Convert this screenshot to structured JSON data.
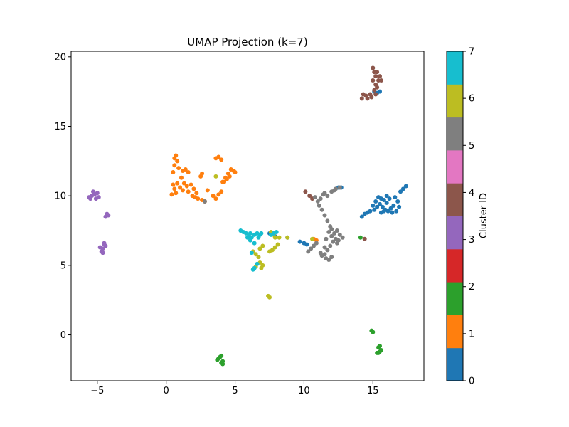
{
  "chart_data": {
    "type": "scatter",
    "title": "UMAP Projection (k=7)",
    "xlabel": "",
    "ylabel": "",
    "xlim": [
      -6.9,
      18.7
    ],
    "ylim": [
      -3.3,
      20.4
    ],
    "xticks": [
      -5,
      0,
      5,
      10,
      15
    ],
    "yticks": [
      0,
      5,
      10,
      15,
      20
    ],
    "colorbar": {
      "label": "Cluster ID",
      "min": 0,
      "max": 7,
      "ticks": [
        0,
        1,
        2,
        3,
        4,
        5,
        6,
        7
      ],
      "colors": [
        "#1f77b4",
        "#ff7f0e",
        "#2ca02c",
        "#d62728",
        "#9467bd",
        "#8c564b",
        "#e377c2",
        "#7f7f7f",
        "#bcbd22",
        "#17becf"
      ]
    },
    "series": [
      {
        "cluster": 0,
        "color": "#1f77b4",
        "points": [
          [
            15.3,
            17.4
          ],
          [
            15.5,
            17.5
          ],
          [
            15.1,
            17.5
          ],
          [
            14.2,
            8.5
          ],
          [
            14.4,
            8.7
          ],
          [
            14.6,
            8.8
          ],
          [
            14.8,
            8.9
          ],
          [
            15.0,
            9.3
          ],
          [
            15.2,
            9.6
          ],
          [
            15.4,
            9.9
          ],
          [
            15.6,
            9.8
          ],
          [
            15.8,
            9.7
          ],
          [
            15.5,
            9.4
          ],
          [
            15.7,
            9.2
          ],
          [
            15.9,
            9.0
          ],
          [
            16.1,
            8.9
          ],
          [
            16.3,
            9.1
          ],
          [
            16.5,
            9.3
          ],
          [
            16.0,
            9.5
          ],
          [
            16.2,
            9.8
          ],
          [
            15.6,
            8.8
          ],
          [
            15.8,
            8.9
          ],
          [
            16.4,
            8.8
          ],
          [
            16.7,
            8.9
          ],
          [
            16.9,
            9.2
          ],
          [
            16.8,
            9.6
          ],
          [
            16.6,
            9.9
          ],
          [
            17.0,
            10.3
          ],
          [
            17.2,
            10.5
          ],
          [
            17.4,
            10.7
          ],
          [
            16.0,
            10.0
          ],
          [
            15.3,
            9.2
          ],
          [
            15.1,
            9.0
          ],
          [
            12.5,
            10.6
          ],
          [
            12.7,
            10.6
          ],
          [
            10.0,
            6.6
          ],
          [
            10.2,
            6.5
          ],
          [
            9.7,
            6.7
          ],
          [
            8.8,
            7.0
          ],
          [
            7.5,
            7.3
          ],
          [
            7.9,
            7.1
          ]
        ]
      },
      {
        "cluster": 1,
        "color": "#ff7f0e",
        "points": [
          [
            0.5,
            10.8
          ],
          [
            0.6,
            10.5
          ],
          [
            0.8,
            10.9
          ],
          [
            1.0,
            10.6
          ],
          [
            0.7,
            10.2
          ],
          [
            0.6,
            12.7
          ],
          [
            0.7,
            12.9
          ],
          [
            0.8,
            12.5
          ],
          [
            0.6,
            12.2
          ],
          [
            0.9,
            12.0
          ],
          [
            0.5,
            11.7
          ],
          [
            1.2,
            11.8
          ],
          [
            1.4,
            11.9
          ],
          [
            1.6,
            11.7
          ],
          [
            1.1,
            11.3
          ],
          [
            1.3,
            10.9
          ],
          [
            1.5,
            10.7
          ],
          [
            1.8,
            10.8
          ],
          [
            2.0,
            10.5
          ],
          [
            2.2,
            10.2
          ],
          [
            1.6,
            10.3
          ],
          [
            1.9,
            10.0
          ],
          [
            2.1,
            9.9
          ],
          [
            2.3,
            9.8
          ],
          [
            2.6,
            9.7
          ],
          [
            2.8,
            9.6
          ],
          [
            2.5,
            11.4
          ],
          [
            2.6,
            11.6
          ],
          [
            3.0,
            10.4
          ],
          [
            3.4,
            10.0
          ],
          [
            3.6,
            9.8
          ],
          [
            3.8,
            10.1
          ],
          [
            4.0,
            10.3
          ],
          [
            4.2,
            11.0
          ],
          [
            4.3,
            11.3
          ],
          [
            4.5,
            11.6
          ],
          [
            4.7,
            11.9
          ],
          [
            4.9,
            11.8
          ],
          [
            4.6,
            11.4
          ],
          [
            4.4,
            11.2
          ],
          [
            4.1,
            11.0
          ],
          [
            3.6,
            12.7
          ],
          [
            3.8,
            12.8
          ],
          [
            4.0,
            12.6
          ],
          [
            5.0,
            11.7
          ],
          [
            1.2,
            10.4
          ],
          [
            0.4,
            10.1
          ],
          [
            10.7,
            6.9
          ],
          [
            10.9,
            6.8
          ]
        ]
      },
      {
        "cluster": 2,
        "color": "#2ca02c",
        "points": [
          [
            3.7,
            -1.8
          ],
          [
            3.9,
            -1.6
          ],
          [
            4.0,
            -1.5
          ],
          [
            4.1,
            -1.9
          ],
          [
            3.8,
            -1.7
          ],
          [
            4.0,
            -2.0
          ],
          [
            4.1,
            -2.1
          ],
          [
            15.3,
            -1.3
          ],
          [
            15.5,
            -1.2
          ],
          [
            15.4,
            -0.9
          ],
          [
            15.6,
            -1.1
          ],
          [
            15.5,
            -0.8
          ],
          [
            15.4,
            -1.3
          ],
          [
            15.0,
            0.2
          ],
          [
            14.9,
            0.3
          ],
          [
            14.1,
            7.0
          ]
        ]
      },
      {
        "cluster": 3,
        "color": "#9467bd",
        "points": [
          [
            -5.6,
            9.9
          ],
          [
            -5.4,
            10.0
          ],
          [
            -5.2,
            10.1
          ],
          [
            -5.0,
            10.2
          ],
          [
            -5.3,
            10.3
          ],
          [
            -5.1,
            9.8
          ],
          [
            -4.9,
            9.9
          ],
          [
            -5.5,
            9.8
          ],
          [
            -4.4,
            8.5
          ],
          [
            -4.2,
            8.6
          ],
          [
            -4.3,
            8.7
          ],
          [
            -4.8,
            6.3
          ],
          [
            -4.6,
            6.2
          ],
          [
            -4.5,
            6.5
          ],
          [
            -4.4,
            6.4
          ],
          [
            -4.7,
            6.0
          ],
          [
            -4.6,
            5.9
          ],
          [
            -4.5,
            6.6
          ]
        ]
      },
      {
        "cluster": 4,
        "color": "#8c564b",
        "points": [
          [
            15.0,
            19.2
          ],
          [
            15.1,
            18.9
          ],
          [
            15.2,
            18.6
          ],
          [
            15.0,
            18.3
          ],
          [
            15.2,
            18.0
          ],
          [
            15.4,
            18.3
          ],
          [
            15.6,
            18.3
          ],
          [
            15.5,
            18.6
          ],
          [
            15.3,
            17.8
          ],
          [
            15.1,
            17.6
          ],
          [
            14.8,
            17.3
          ],
          [
            14.5,
            17.2
          ],
          [
            14.3,
            17.3
          ],
          [
            14.2,
            17.0
          ],
          [
            14.6,
            17.0
          ],
          [
            14.9,
            17.1
          ],
          [
            15.2,
            17.3
          ],
          [
            15.3,
            18.9
          ],
          [
            10.1,
            10.3
          ],
          [
            10.4,
            10.0
          ],
          [
            10.6,
            9.8
          ],
          [
            14.4,
            6.9
          ]
        ]
      },
      {
        "cluster": 5,
        "color": "#7f7f7f",
        "points": [
          [
            10.8,
            9.9
          ],
          [
            11.0,
            9.6
          ],
          [
            11.2,
            9.8
          ],
          [
            11.5,
            10.2
          ],
          [
            11.7,
            10.0
          ],
          [
            12.0,
            10.3
          ],
          [
            12.3,
            10.5
          ],
          [
            12.6,
            10.6
          ],
          [
            11.1,
            9.3
          ],
          [
            11.3,
            9.0
          ],
          [
            11.5,
            8.6
          ],
          [
            11.7,
            8.2
          ],
          [
            11.9,
            7.8
          ],
          [
            11.8,
            7.4
          ],
          [
            12.0,
            7.1
          ],
          [
            12.2,
            7.3
          ],
          [
            12.4,
            7.5
          ],
          [
            12.6,
            7.2
          ],
          [
            12.3,
            6.9
          ],
          [
            12.1,
            6.7
          ],
          [
            11.9,
            6.4
          ],
          [
            11.7,
            6.1
          ],
          [
            11.5,
            5.8
          ],
          [
            11.6,
            5.5
          ],
          [
            11.8,
            5.4
          ],
          [
            12.0,
            5.6
          ],
          [
            11.3,
            5.7
          ],
          [
            11.5,
            6.3
          ],
          [
            10.9,
            6.6
          ],
          [
            10.7,
            6.4
          ],
          [
            10.5,
            6.2
          ],
          [
            10.3,
            6.0
          ],
          [
            11.2,
            5.9
          ],
          [
            12.5,
            6.8
          ],
          [
            12.8,
            7.0
          ],
          [
            11.6,
            6.9
          ],
          [
            12.0,
            7.6
          ],
          [
            12.4,
            6.6
          ],
          [
            12.2,
            10.4
          ],
          [
            11.4,
            10.1
          ],
          [
            2.8,
            9.6
          ]
        ]
      },
      {
        "cluster": 6,
        "color": "#bcbd22",
        "points": [
          [
            6.3,
            6.0
          ],
          [
            6.5,
            5.8
          ],
          [
            6.7,
            5.6
          ],
          [
            6.8,
            5.2
          ],
          [
            7.0,
            5.0
          ],
          [
            6.9,
            4.8
          ],
          [
            6.5,
            4.9
          ],
          [
            6.8,
            6.2
          ],
          [
            7.0,
            6.4
          ],
          [
            7.5,
            6.0
          ],
          [
            7.7,
            6.1
          ],
          [
            7.9,
            6.3
          ],
          [
            8.1,
            6.5
          ],
          [
            7.6,
            7.4
          ],
          [
            7.8,
            7.2
          ],
          [
            7.9,
            7.0
          ],
          [
            8.2,
            7.0
          ],
          [
            8.8,
            7.0
          ],
          [
            7.4,
            2.8
          ],
          [
            7.5,
            2.7
          ],
          [
            3.6,
            11.4
          ],
          [
            10.6,
            6.9
          ]
        ]
      },
      {
        "cluster": 7,
        "color": "#17becf",
        "points": [
          [
            5.4,
            7.5
          ],
          [
            5.6,
            7.4
          ],
          [
            5.8,
            7.3
          ],
          [
            6.0,
            7.1
          ],
          [
            6.2,
            7.0
          ],
          [
            6.4,
            7.2
          ],
          [
            6.6,
            7.3
          ],
          [
            6.8,
            7.2
          ],
          [
            6.9,
            7.3
          ],
          [
            6.1,
            6.8
          ],
          [
            6.4,
            6.6
          ],
          [
            6.2,
            5.9
          ],
          [
            6.3,
            4.7
          ],
          [
            6.4,
            4.8
          ],
          [
            6.6,
            5.1
          ],
          [
            6.1,
            7.3
          ],
          [
            5.9,
            7.0
          ],
          [
            7.6,
            7.2
          ],
          [
            7.8,
            7.3
          ],
          [
            8.0,
            7.4
          ],
          [
            6.7,
            7.0
          ]
        ]
      }
    ]
  }
}
